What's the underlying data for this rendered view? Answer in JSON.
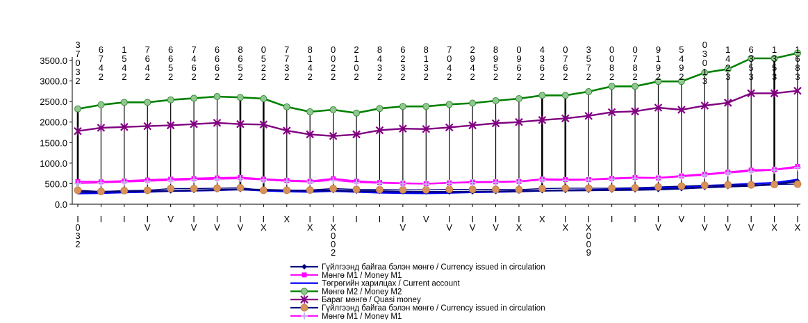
{
  "chart_data": {
    "type": "line",
    "ylim": [
      0,
      3500
    ],
    "yticks": [
      "0.0",
      "500.0",
      "1000.0",
      "1500.0",
      "2000.0",
      "2500.0",
      "3000.0",
      "3500.0"
    ],
    "grid": false,
    "legend_position": "bottom",
    "top_labels": [
      "3\n7\n0\n3\n2",
      "6\n7\n4\n2",
      "1\n5\n4\n2",
      "7\n6\n4\n2",
      "6\n6\n5\n2",
      "7\n4\n6\n2",
      "6\n6\n6\n2",
      "8\n6\n5\n2",
      "0\n5\n2\n2",
      "7\n7\n3\n2",
      "8\n1\n4\n2",
      "0\n0\n2\n2",
      "2\n1\n0\n2",
      "8\n4\n3\n2",
      "6\n2\n3\n2",
      "8\n1\n3\n2",
      "7\n0\n4\n2",
      "2\n9\n4\n2",
      "8\n9\n5\n2",
      "0\n9\n6\n2",
      "4\n3\n6\n2",
      "0\n7\n6\n2",
      "3\n5\n7\n2",
      "0\n0\n8\n2",
      "0\n7\n8\n2",
      "9\n1\n9\n2",
      "5\n4\n9\n2",
      "0\n3\n0\n1\n3",
      "1\n4\n2\n3",
      "6\n3\n5\n3",
      "1\n3\n5\n3",
      "1\n6\n8\n3"
    ],
    "x_labels": [
      "I\n0\n3\n2",
      "I",
      "I",
      "I\nV",
      "V",
      "I\nV",
      "I\nV",
      "I\nV",
      "I\nX",
      "X",
      "I\nX",
      "I\nX\n0\n0\n2",
      "I",
      "I",
      "I\nV",
      "V",
      "I\nV",
      "I\nV",
      "I\nV",
      "I\nX",
      "X",
      "I\nX",
      "I\nX\n0\n0\n9",
      "I",
      "I",
      "I\nV",
      "V",
      "I\nV",
      "I\nV",
      "I\nV",
      "I\nX",
      "I\nX"
    ],
    "series": [
      {
        "name": "Гүйлгээнд байгаа бэлэн мөнгө / Currency issued in circulation",
        "color": "#000080",
        "marker": "diamond",
        "values": [
          305,
          300,
          310,
          315,
          325,
          335,
          350,
          360,
          350,
          335,
          330,
          335,
          320,
          315,
          305,
          300,
          300,
          305,
          310,
          320,
          330,
          335,
          340,
          345,
          350,
          360,
          380,
          410,
          430,
          450,
          480,
          560
        ]
      },
      {
        "name": "Мөнгө М1 / Money M1",
        "color": "#ff00ff",
        "marker": "square",
        "values": [
          550,
          545,
          565,
          590,
          610,
          625,
          640,
          650,
          610,
          580,
          560,
          620,
          560,
          530,
          510,
          500,
          520,
          540,
          545,
          555,
          610,
          600,
          600,
          630,
          650,
          640,
          690,
          730,
          780,
          830,
          840,
          920
        ]
      },
      {
        "name": "Төгрөгийн харилцах / Current account",
        "color": "#0000ff",
        "marker": "none",
        "values": [
          260,
          270,
          285,
          300,
          320,
          330,
          340,
          360,
          330,
          310,
          300,
          320,
          300,
          280,
          270,
          265,
          275,
          290,
          300,
          310,
          330,
          340,
          350,
          360,
          375,
          390,
          420,
          450,
          470,
          500,
          520,
          600
        ]
      },
      {
        "name": "Мөнгө М2 / Money M2",
        "color": "#008000",
        "marker": "circle",
        "values": [
          2320,
          2420,
          2480,
          2480,
          2540,
          2580,
          2620,
          2600,
          2570,
          2370,
          2250,
          2300,
          2220,
          2330,
          2380,
          2380,
          2430,
          2460,
          2520,
          2570,
          2650,
          2650,
          2740,
          2870,
          2870,
          2990,
          2990,
          3200,
          3290,
          3550,
          3550,
          3680
        ]
      },
      {
        "name": "Бараг мөнгө / Quasi money",
        "color": "#800080",
        "marker": "star",
        "values": [
          1780,
          1860,
          1880,
          1900,
          1920,
          1950,
          1980,
          1950,
          1940,
          1790,
          1700,
          1660,
          1700,
          1800,
          1840,
          1830,
          1870,
          1920,
          1970,
          2000,
          2050,
          2090,
          2150,
          2240,
          2260,
          2350,
          2300,
          2400,
          2470,
          2700,
          2700,
          2760
        ]
      },
      {
        "name": "Гүйлгээнд байгаа бэлэн мөнгө / Currency issued in circulation",
        "color": "#000080",
        "marker": "circle-orange",
        "values": [
          340,
          310,
          330,
          340,
          380,
          380,
          390,
          400,
          340,
          340,
          345,
          380,
          360,
          355,
          350,
          350,
          360,
          360,
          360,
          355,
          380,
          390,
          390,
          390,
          400,
          420,
          440,
          460,
          470,
          470,
          480,
          490
        ]
      },
      {
        "name": "Мөнгө М1 / Money M1",
        "color": "#ff00ff",
        "marker": "cross-light",
        "values": [
          500,
          520,
          540,
          560,
          580,
          600,
          610,
          620,
          590,
          560,
          540,
          580,
          530,
          510,
          500,
          490,
          510,
          525,
          530,
          545,
          590,
          580,
          590,
          610,
          630,
          630,
          670,
          710,
          760,
          800,
          830,
          890
        ]
      }
    ]
  }
}
